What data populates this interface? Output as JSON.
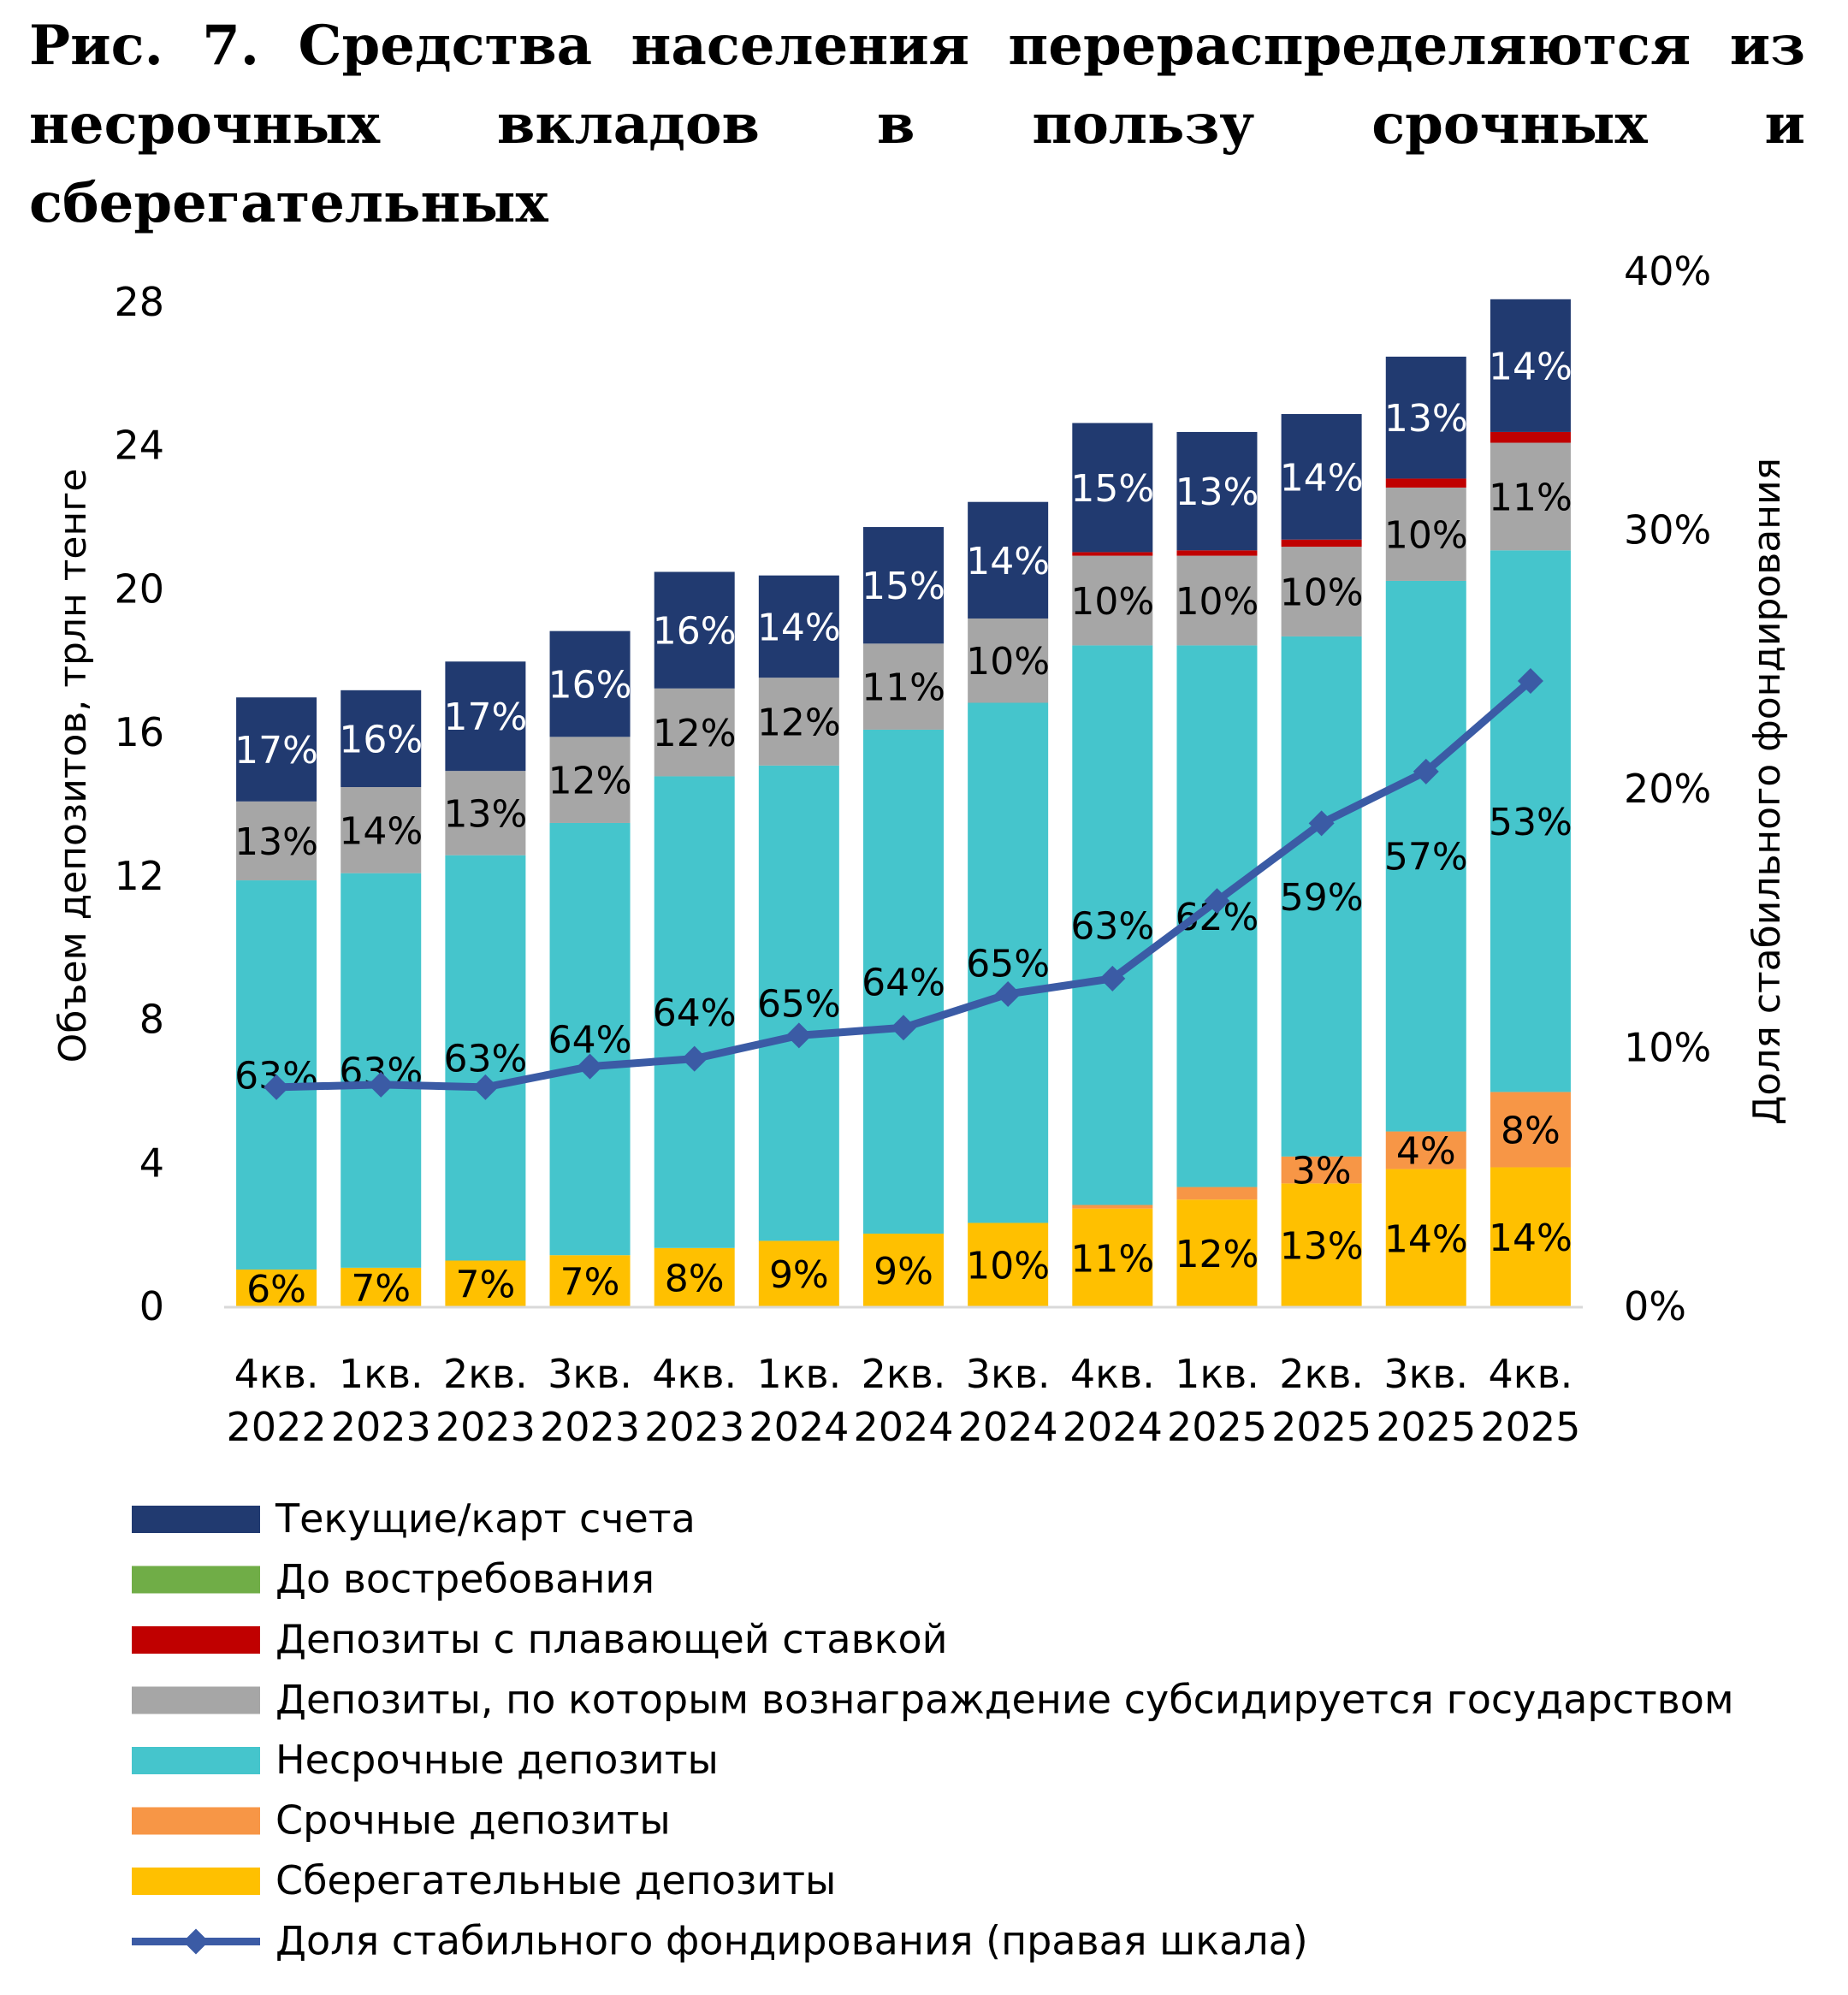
{
  "figure": {
    "title": "Рис. 7. Средства населения перераспределяются из несрочных вкладов в пользу срочных и сберегательных"
  },
  "chart_data": {
    "type": "bar",
    "stacked": true,
    "categories": [
      [
        "4кв.",
        "2022"
      ],
      [
        "1кв.",
        "2023"
      ],
      [
        "2кв.",
        "2023"
      ],
      [
        "3кв.",
        "2023"
      ],
      [
        "4кв.",
        "2023"
      ],
      [
        "1кв.",
        "2024"
      ],
      [
        "2кв.",
        "2024"
      ],
      [
        "3кв.",
        "2024"
      ],
      [
        "4кв.",
        "2024"
      ],
      [
        "1кв.",
        "2025"
      ],
      [
        "2кв.",
        "2025"
      ],
      [
        "3кв.",
        "2025"
      ],
      [
        "4кв.",
        "2025"
      ]
    ],
    "ylabel": "Объем депозитов, трлн тенге",
    "ylim": [
      0,
      28
    ],
    "yticks": [
      "0",
      "4",
      "8",
      "12",
      "16",
      "20",
      "24",
      "28"
    ],
    "y2label": "Доля стабильного фондирования",
    "y2lim": [
      0,
      40
    ],
    "y2ticks": [
      "0%",
      "10%",
      "20%",
      "30%",
      "40%"
    ],
    "legend_position": "bottom",
    "series": [
      {
        "name": "Сберегательные депозиты",
        "color": "#FFC000",
        "values": [
          1.05,
          1.1,
          1.3,
          1.45,
          1.65,
          1.85,
          2.05,
          2.35,
          2.75,
          3.0,
          3.45,
          3.85,
          3.9
        ],
        "labels": [
          "6%",
          "7%",
          "7%",
          "7%",
          "8%",
          "9%",
          "9%",
          "10%",
          "11%",
          "12%",
          "13%",
          "14%",
          "14%"
        ]
      },
      {
        "name": "Срочные депозиты",
        "color": "#F79646",
        "values": [
          0,
          0,
          0,
          0,
          0,
          0,
          0,
          0,
          0.1,
          0.35,
          0.75,
          1.05,
          2.1
        ],
        "labels": [
          "",
          "",
          "",
          "",
          "",
          "",
          "",
          "",
          "",
          "",
          "3%",
          "4%",
          "8%"
        ]
      },
      {
        "name": "Несрочные депозиты",
        "color": "#45C5CC",
        "values": [
          10.85,
          11.0,
          11.3,
          12.05,
          13.15,
          13.25,
          14.05,
          14.5,
          15.6,
          15.1,
          14.5,
          15.35,
          15.1
        ],
        "labels": [
          "63%",
          "63%",
          "63%",
          "64%",
          "64%",
          "65%",
          "64%",
          "65%",
          "63%",
          "62%",
          "59%",
          "57%",
          "53%"
        ]
      },
      {
        "name": "Депозиты, по которым вознаграждение субсидируется государством",
        "color": "#A6A6A6",
        "values": [
          2.2,
          2.4,
          2.35,
          2.4,
          2.45,
          2.45,
          2.4,
          2.35,
          2.5,
          2.5,
          2.5,
          2.6,
          3.0
        ],
        "labels": [
          "13%",
          "14%",
          "13%",
          "12%",
          "12%",
          "12%",
          "11%",
          "10%",
          "10%",
          "10%",
          "10%",
          "10%",
          "11%"
        ]
      },
      {
        "name": "Депозиты с плавающей ставкой",
        "color": "#C00000",
        "values": [
          0,
          0,
          0,
          0,
          0,
          0,
          0,
          0,
          0.1,
          0.15,
          0.2,
          0.25,
          0.3
        ],
        "labels": [
          "",
          "",
          "",
          "",
          "",
          "",
          "",
          "",
          "",
          "",
          "",
          "",
          ""
        ]
      },
      {
        "name": "До востребования",
        "color": "#70AD47",
        "values": [
          0,
          0,
          0,
          0,
          0,
          0,
          0,
          0,
          0,
          0,
          0,
          0,
          0
        ],
        "labels": [
          "",
          "",
          "",
          "",
          "",
          "",
          "",
          "",
          "",
          "",
          "",
          "",
          ""
        ]
      },
      {
        "name": "Текущие/карт счета",
        "color": "#213A70",
        "values": [
          2.9,
          2.7,
          3.05,
          2.95,
          3.25,
          2.85,
          3.25,
          3.25,
          3.6,
          3.3,
          3.5,
          3.4,
          3.7
        ],
        "labels": [
          "17%",
          "16%",
          "17%",
          "16%",
          "16%",
          "14%",
          "15%",
          "14%",
          "15%",
          "13%",
          "14%",
          "13%",
          "14%"
        ]
      }
    ],
    "line": {
      "name": "Доля стабильного фондирования (правая шкала)",
      "color": "#3B5BA5",
      "axis": "right",
      "values": [
        8.5,
        8.6,
        8.5,
        9.3,
        9.6,
        10.5,
        10.8,
        12.1,
        12.7,
        15.7,
        18.7,
        20.7,
        24.2
      ]
    }
  }
}
